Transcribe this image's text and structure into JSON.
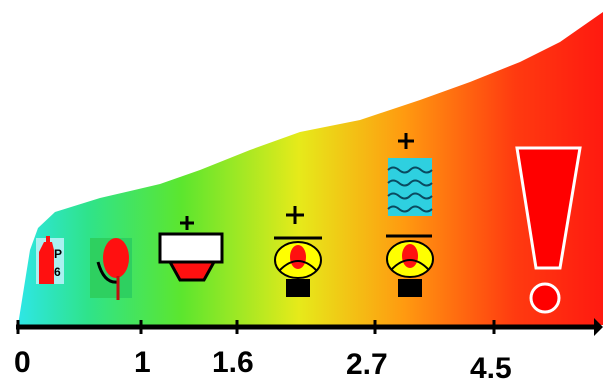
{
  "scale": {
    "ticks": [
      "0",
      "1",
      "1.6",
      "2.7",
      "4.5"
    ]
  },
  "icons": {
    "extinguisher": {
      "letters": [
        "P",
        "6"
      ]
    }
  },
  "colors": {
    "gradient": [
      "#2ee6e6",
      "#2fe38a",
      "#5ce62e",
      "#e6ea1a",
      "#ff9a10",
      "#ff3a10",
      "#ff1a10"
    ],
    "axis": "#000000",
    "alarm": "#ff0000"
  }
}
